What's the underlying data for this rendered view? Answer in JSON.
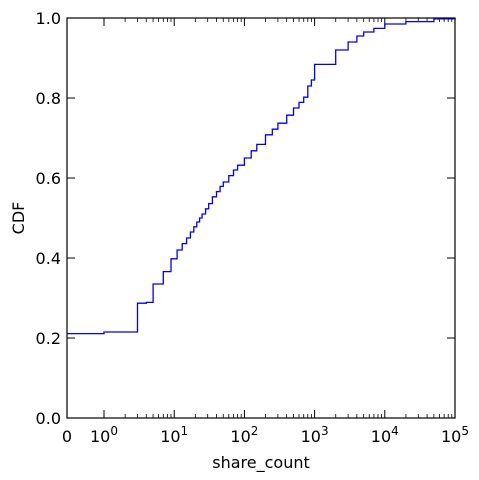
{
  "chart_data": {
    "type": "line",
    "title": "",
    "xlabel": "share_count",
    "ylabel": "CDF",
    "x_scale": "symlog",
    "xlim": [
      0,
      100000
    ],
    "ylim": [
      0,
      1
    ],
    "grid": false,
    "legend": "none",
    "line_color": "#0000ff",
    "x_ticks": [
      {
        "value": 0,
        "base": "0",
        "exp": ""
      },
      {
        "value": 1,
        "base": "10",
        "exp": "0"
      },
      {
        "value": 10,
        "base": "10",
        "exp": "1"
      },
      {
        "value": 100,
        "base": "10",
        "exp": "2"
      },
      {
        "value": 1000,
        "base": "10",
        "exp": "3"
      },
      {
        "value": 10000,
        "base": "10",
        "exp": "4"
      },
      {
        "value": 100000,
        "base": "10",
        "exp": "5"
      }
    ],
    "y_ticks": [
      {
        "value": 0,
        "label": "0.0"
      },
      {
        "value": 0.2,
        "label": "0.2"
      },
      {
        "value": 0.4,
        "label": "0.4"
      },
      {
        "value": 0.6,
        "label": "0.6"
      },
      {
        "value": 0.8,
        "label": "0.8"
      },
      {
        "value": 1.0,
        "label": "1.0"
      }
    ],
    "series": [
      {
        "points": [
          [
            0,
            0.211
          ],
          [
            1,
            0.215
          ],
          [
            3,
            0.287
          ],
          [
            4,
            0.289
          ],
          [
            5,
            0.335
          ],
          [
            7,
            0.366
          ],
          [
            9,
            0.398
          ],
          [
            11,
            0.42
          ],
          [
            13,
            0.436
          ],
          [
            15,
            0.45
          ],
          [
            17,
            0.465
          ],
          [
            19,
            0.478
          ],
          [
            21,
            0.49
          ],
          [
            23,
            0.5
          ],
          [
            25,
            0.51
          ],
          [
            28,
            0.523
          ],
          [
            31,
            0.536
          ],
          [
            35,
            0.553
          ],
          [
            40,
            0.566
          ],
          [
            45,
            0.579
          ],
          [
            50,
            0.59
          ],
          [
            60,
            0.606
          ],
          [
            70,
            0.62
          ],
          [
            80,
            0.632
          ],
          [
            100,
            0.65
          ],
          [
            125,
            0.668
          ],
          [
            150,
            0.684
          ],
          [
            200,
            0.708
          ],
          [
            250,
            0.722
          ],
          [
            300,
            0.737
          ],
          [
            400,
            0.757
          ],
          [
            500,
            0.775
          ],
          [
            600,
            0.789
          ],
          [
            700,
            0.802
          ],
          [
            800,
            0.83
          ],
          [
            900,
            0.845
          ],
          [
            1000,
            0.884
          ],
          [
            2000,
            0.92
          ],
          [
            3000,
            0.94
          ],
          [
            4000,
            0.955
          ],
          [
            5000,
            0.965
          ],
          [
            7000,
            0.974
          ],
          [
            10000,
            0.985
          ],
          [
            20000,
            0.991
          ],
          [
            50000,
            0.998
          ],
          [
            100000,
            1.0
          ]
        ]
      }
    ]
  }
}
